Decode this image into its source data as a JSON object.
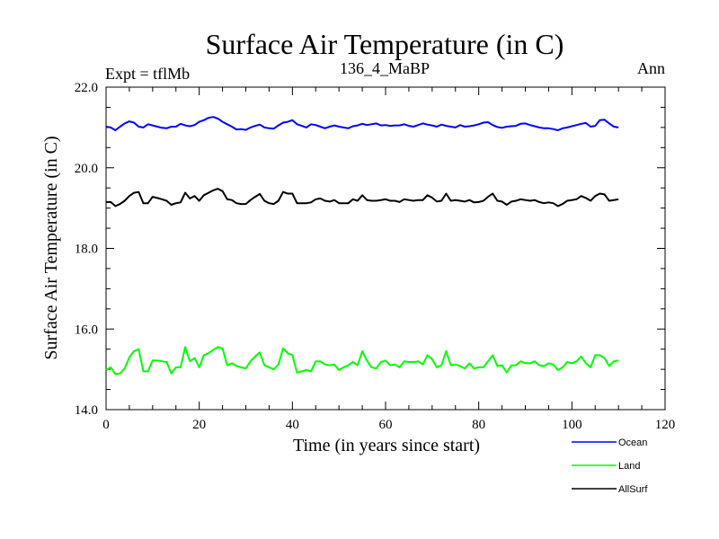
{
  "chart_data": {
    "type": "line",
    "title": "Surface Air Temperature (in C)",
    "subtitle": "136_4_MaBP",
    "left_label": "Expt = tflMb",
    "right_label": "Ann",
    "xlabel": "Time (in years since start)",
    "ylabel": "Surface Air Temperature (in C)",
    "xlim": [
      0,
      120
    ],
    "ylim": [
      14.0,
      22.0
    ],
    "xticks": [
      0,
      20,
      40,
      60,
      80,
      100,
      120
    ],
    "xtick_labels": [
      "0",
      "20",
      "40",
      "60",
      "80",
      "100",
      "120"
    ],
    "yticks": [
      14.0,
      16.0,
      18.0,
      20.0,
      22.0
    ],
    "ytick_labels": [
      "14.0",
      "16.0",
      "18.0",
      "20.0",
      "22.0"
    ],
    "legend_position": "bottom-right outside",
    "x": [
      0,
      1,
      2,
      3,
      4,
      5,
      6,
      7,
      8,
      9,
      10,
      11,
      12,
      13,
      14,
      15,
      16,
      17,
      18,
      19,
      20,
      21,
      22,
      23,
      24,
      25,
      26,
      27,
      28,
      29,
      30,
      31,
      32,
      33,
      34,
      35,
      36,
      37,
      38,
      39,
      40,
      41,
      42,
      43,
      44,
      45,
      46,
      47,
      48,
      49,
      50,
      51,
      52,
      53,
      54,
      55,
      56,
      57,
      58,
      59,
      60,
      61,
      62,
      63,
      64,
      65,
      66,
      67,
      68,
      69,
      70,
      71,
      72,
      73,
      74,
      75,
      76,
      77,
      78,
      79,
      80,
      81,
      82,
      83,
      84,
      85,
      86,
      87,
      88,
      89,
      90,
      91,
      92,
      93,
      94,
      95,
      96,
      97,
      98,
      99,
      100,
      101,
      102,
      103,
      104,
      105,
      106,
      107,
      108,
      109,
      110
    ],
    "series": [
      {
        "name": "Ocean",
        "color": "#0000ff",
        "values": [
          21.02,
          21.0,
          20.93,
          21.02,
          21.1,
          21.15,
          21.12,
          21.02,
          21.0,
          21.08,
          21.05,
          21.02,
          20.99,
          20.98,
          21.02,
          21.02,
          21.09,
          21.05,
          21.03,
          21.06,
          21.14,
          21.18,
          21.24,
          21.26,
          21.22,
          21.14,
          21.08,
          21.02,
          20.95,
          20.96,
          20.94,
          21.0,
          21.04,
          21.07,
          21.0,
          20.98,
          20.97,
          21.05,
          21.12,
          21.14,
          21.18,
          21.08,
          21.04,
          21.0,
          21.08,
          21.06,
          21.02,
          20.98,
          21.02,
          21.05,
          21.02,
          21.0,
          20.98,
          21.03,
          21.05,
          21.09,
          21.06,
          21.08,
          21.1,
          21.05,
          21.06,
          21.04,
          21.05,
          21.05,
          21.08,
          21.04,
          21.02,
          21.06,
          21.1,
          21.07,
          21.05,
          21.02,
          21.07,
          21.04,
          21.02,
          21.0,
          21.06,
          21.02,
          21.03,
          21.05,
          21.08,
          21.12,
          21.13,
          21.06,
          21.01,
          20.99,
          21.02,
          21.03,
          21.04,
          21.09,
          21.1,
          21.06,
          21.03,
          21.0,
          20.98,
          20.98,
          20.96,
          20.93,
          20.98,
          21.0,
          21.03,
          21.06,
          21.09,
          21.11,
          21.02,
          21.04,
          21.18,
          21.19,
          21.1,
          21.02,
          21.0
        ]
      },
      {
        "name": "Land",
        "color": "#00ff00",
        "values": [
          14.98,
          15.05,
          14.88,
          14.9,
          15.02,
          15.3,
          15.45,
          15.5,
          14.95,
          14.95,
          15.22,
          15.22,
          15.2,
          15.18,
          14.9,
          15.05,
          15.05,
          15.55,
          15.2,
          15.28,
          15.05,
          15.35,
          15.4,
          15.48,
          15.55,
          15.52,
          15.1,
          15.15,
          15.08,
          15.05,
          15.02,
          15.2,
          15.32,
          15.42,
          15.1,
          15.05,
          15.0,
          15.12,
          15.52,
          15.4,
          15.35,
          14.92,
          14.95,
          14.98,
          14.95,
          15.2,
          15.2,
          15.12,
          15.1,
          15.12,
          14.98,
          15.05,
          15.1,
          15.18,
          15.1,
          15.45,
          15.22,
          15.05,
          15.02,
          15.18,
          15.22,
          15.1,
          15.12,
          15.05,
          15.2,
          15.18,
          15.18,
          15.2,
          15.12,
          15.35,
          15.25,
          15.05,
          15.1,
          15.45,
          15.1,
          15.12,
          15.08,
          15.02,
          15.15,
          15.02,
          15.05,
          15.05,
          15.2,
          15.35,
          15.08,
          15.1,
          14.92,
          15.1,
          15.1,
          15.2,
          15.15,
          15.15,
          15.2,
          15.1,
          15.08,
          15.15,
          15.12,
          14.98,
          15.05,
          15.18,
          15.15,
          15.2,
          15.32,
          15.15,
          15.05,
          15.35,
          15.35,
          15.28,
          15.08,
          15.2,
          15.22
        ]
      },
      {
        "name": "AllSurf",
        "color": "#000000",
        "values": [
          19.15,
          19.15,
          19.05,
          19.1,
          19.18,
          19.3,
          19.38,
          19.4,
          19.12,
          19.12,
          19.28,
          19.25,
          19.22,
          19.18,
          19.08,
          19.12,
          19.14,
          19.38,
          19.24,
          19.3,
          19.18,
          19.32,
          19.38,
          19.44,
          19.48,
          19.42,
          19.22,
          19.2,
          19.12,
          19.1,
          19.1,
          19.2,
          19.28,
          19.35,
          19.18,
          19.12,
          19.1,
          19.18,
          19.4,
          19.36,
          19.36,
          19.12,
          19.12,
          19.12,
          19.14,
          19.22,
          19.24,
          19.18,
          19.16,
          19.2,
          19.12,
          19.12,
          19.12,
          19.22,
          19.18,
          19.32,
          19.2,
          19.18,
          19.18,
          19.2,
          19.22,
          19.18,
          19.18,
          19.15,
          19.22,
          19.2,
          19.18,
          19.2,
          19.2,
          19.32,
          19.26,
          19.16,
          19.18,
          19.36,
          19.18,
          19.2,
          19.18,
          19.16,
          19.2,
          19.14,
          19.15,
          19.18,
          19.28,
          19.36,
          19.18,
          19.16,
          19.08,
          19.16,
          19.18,
          19.22,
          19.2,
          19.18,
          19.2,
          19.15,
          19.12,
          19.14,
          19.12,
          19.05,
          19.1,
          19.18,
          19.2,
          19.22,
          19.3,
          19.25,
          19.18,
          19.3,
          19.36,
          19.34,
          19.18,
          19.2,
          19.22
        ]
      }
    ]
  }
}
